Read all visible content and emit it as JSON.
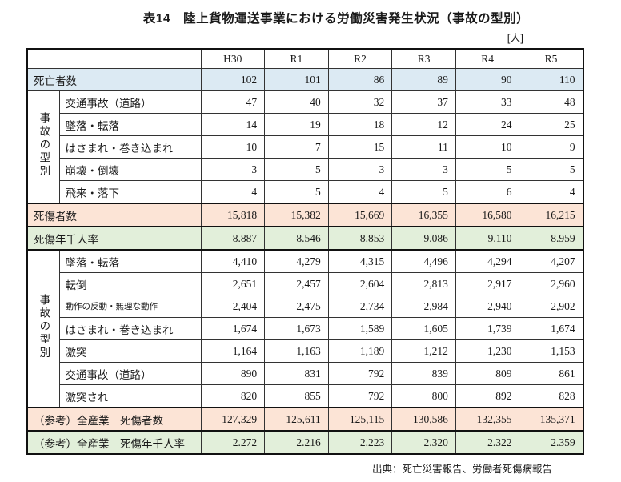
{
  "title": "表14　陸上貨物運送事業における労働災害発生状況（事故の型別）",
  "unit_label": "[人]",
  "source_note": "出典：死亡災害報告、労働者死傷病報告",
  "colors": {
    "fatalities_row_blue": "#DCEAF3",
    "casualties_row_peach": "#FCE4D6",
    "rate_row_green": "#E2EFDA",
    "border_thin": "#333333",
    "border_thick": "#111111"
  },
  "chart_data": {
    "type": "table",
    "title": "表14　陸上貨物運送事業における労働災害発生状況（事故の型別）",
    "unit": "人",
    "year_headers": [
      "H30",
      "R1",
      "R2",
      "R3",
      "R4",
      "R5"
    ],
    "sections": [
      {
        "kind": "row",
        "style": "blue",
        "thick": false,
        "label": "死亡者数",
        "values": [
          "102",
          "101",
          "86",
          "89",
          "90",
          "110"
        ]
      },
      {
        "kind": "group",
        "label": "事故の型別",
        "rows": [
          {
            "label": "交通事故（道路）",
            "values": [
              "47",
              "40",
              "32",
              "37",
              "33",
              "48"
            ]
          },
          {
            "label": "墜落・転落",
            "values": [
              "14",
              "19",
              "18",
              "12",
              "24",
              "25"
            ]
          },
          {
            "label": "はさまれ・巻き込まれ",
            "values": [
              "10",
              "7",
              "15",
              "11",
              "10",
              "9"
            ]
          },
          {
            "label": "崩壊・倒壊",
            "values": [
              "3",
              "5",
              "3",
              "3",
              "5",
              "5"
            ]
          },
          {
            "label": "飛来・落下",
            "values": [
              "4",
              "5",
              "4",
              "5",
              "6",
              "4"
            ]
          }
        ]
      },
      {
        "kind": "row",
        "style": "peach",
        "thick": true,
        "label": "死傷者数",
        "values": [
          "15,818",
          "15,382",
          "15,669",
          "16,355",
          "16,580",
          "16,215"
        ]
      },
      {
        "kind": "row",
        "style": "green",
        "thick": true,
        "label": "死傷年千人率",
        "values": [
          "8.887",
          "8.546",
          "8.853",
          "9.086",
          "9.110",
          "8.959"
        ]
      },
      {
        "kind": "group",
        "label": "事故の型別",
        "rows": [
          {
            "label": "墜落・転落",
            "values": [
              "4,410",
              "4,279",
              "4,315",
              "4,496",
              "4,294",
              "4,207"
            ]
          },
          {
            "label": "転倒",
            "values": [
              "2,651",
              "2,457",
              "2,604",
              "2,813",
              "2,917",
              "2,960"
            ]
          },
          {
            "label": "動作の反動・無理な動作",
            "small_label": true,
            "values": [
              "2,404",
              "2,475",
              "2,734",
              "2,984",
              "2,940",
              "2,902"
            ]
          },
          {
            "label": "はさまれ・巻き込まれ",
            "values": [
              "1,674",
              "1,673",
              "1,589",
              "1,605",
              "1,739",
              "1,674"
            ]
          },
          {
            "label": "激突",
            "values": [
              "1,164",
              "1,163",
              "1,189",
              "1,212",
              "1,230",
              "1,153"
            ]
          },
          {
            "label": "交通事故（道路）",
            "values": [
              "890",
              "831",
              "792",
              "839",
              "809",
              "861"
            ]
          },
          {
            "label": "激突され",
            "values": [
              "820",
              "855",
              "792",
              "800",
              "892",
              "828"
            ]
          }
        ]
      },
      {
        "kind": "row",
        "style": "peach",
        "thick": true,
        "label": "（参考）全産業　死傷者数",
        "values": [
          "127,329",
          "125,611",
          "125,115",
          "130,586",
          "132,355",
          "135,371"
        ]
      },
      {
        "kind": "row",
        "style": "green",
        "thick": true,
        "label": "（参考）全産業　死傷年千人率",
        "values": [
          "2.272",
          "2.216",
          "2.223",
          "2.320",
          "2.322",
          "2.359"
        ]
      }
    ]
  }
}
